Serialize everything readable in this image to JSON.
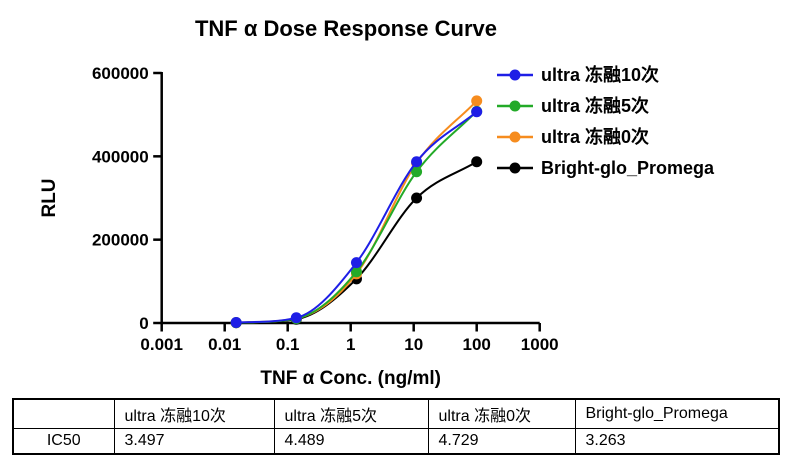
{
  "title": "TNF α Dose Response Curve",
  "chart_data": {
    "type": "line",
    "title": "TNF α Dose Response Curve",
    "xlabel": "TNF α Conc. (ng/ml)",
    "ylabel": "RLU",
    "xscale": "log",
    "xlim": [
      0.001,
      1000
    ],
    "ylim": [
      0,
      600000
    ],
    "grid": false,
    "legend_position": "top-right",
    "xticks": {
      "values": [
        0.001,
        0.01,
        0.1,
        1,
        10,
        100,
        1000
      ],
      "labels": [
        "0.001",
        "0.01",
        "0.1",
        "1",
        "10",
        "100",
        "1000"
      ]
    },
    "yticks": {
      "values": [
        0,
        200000,
        400000,
        600000
      ],
      "labels": [
        "0",
        "200000",
        "400000",
        "600000"
      ]
    },
    "x": [
      0.0152,
      0.137,
      1.235,
      11.11,
      100
    ],
    "series": [
      {
        "name": "ultra 冻融10次",
        "color": "#1e1ee6",
        "values": [
          1200,
          12500,
          145000,
          387000,
          507000
        ]
      },
      {
        "name": "ultra 冻融5次",
        "color": "#23aa28",
        "values": [
          900,
          10500,
          123000,
          363000,
          508000
        ]
      },
      {
        "name": "ultra 冻融0次",
        "color": "#f68c1e",
        "values": [
          1000,
          11000,
          118000,
          384000,
          533000
        ]
      },
      {
        "name": "Bright-glo_Promega",
        "color": "#000000",
        "values": [
          700,
          9000,
          106000,
          300000,
          387000
        ]
      }
    ]
  },
  "table": {
    "row_header": "IC50",
    "columns": [
      "ultra 冻融10次",
      "ultra 冻融5次",
      "ultra 冻融0次",
      "Bright-glo_Promega"
    ],
    "ic50_values": [
      "3.497",
      "4.489",
      "4.729",
      "3.263"
    ]
  }
}
